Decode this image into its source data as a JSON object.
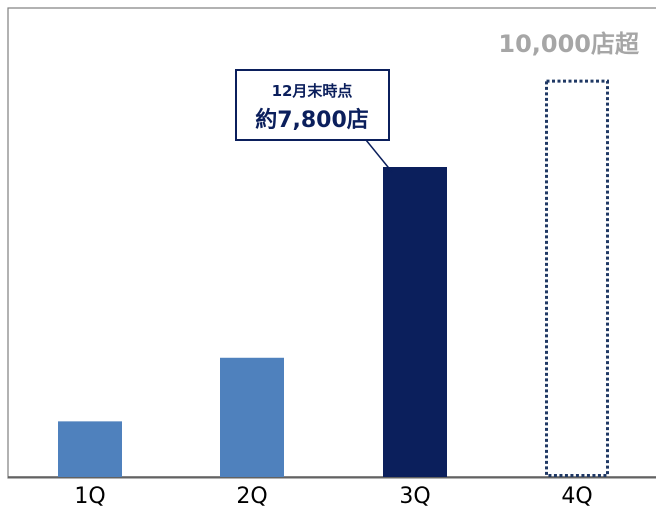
{
  "chart_data": {
    "type": "bar",
    "title": "",
    "xlabel": "",
    "ylabel": "",
    "ylim": [
      0,
      10500
    ],
    "grid": false,
    "categories": [
      "1Q",
      "2Q",
      "3Q",
      "4Q"
    ],
    "values": [
      1400,
      3000,
      7800,
      10000
    ],
    "bar_styles": [
      "solid",
      "solid",
      "solid",
      "dotted-outline"
    ],
    "colors": {
      "bar_light": "#4f81bd",
      "bar_dark": "#0b1f5c",
      "target_outline": "#1f3864",
      "callout_border": "#0b1f5c",
      "callout_text": "#0b1f5c",
      "target_label": "#a6a6a6",
      "axis": "#595959",
      "frame": "#7f7f7f",
      "tick_label": "#000000"
    },
    "bar_colors": [
      "bar_light",
      "bar_light",
      "bar_dark",
      "target_outline"
    ],
    "annotations": {
      "callout_line1": "12月末時点",
      "callout_line2": "約7,800店",
      "target_label": "10,000店超"
    }
  }
}
